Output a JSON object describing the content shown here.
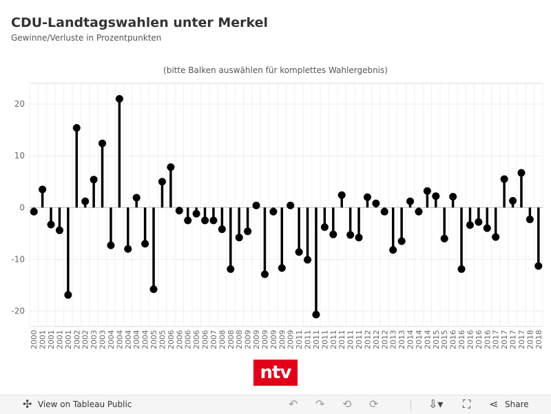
{
  "header": {
    "title": "CDU-Landtagswahlen unter Merkel",
    "subtitle": "Gewinne/Verluste in Prozentpunkten",
    "hint": "(bitte Balken auswählen für komplettes Wahlergebnis)"
  },
  "logo": {
    "text": "ntv",
    "color": "#e2001a"
  },
  "toolbar": {
    "view_label": "View on Tableau Public",
    "share_label": "Share",
    "icons": [
      "tableau-icon",
      "undo-icon",
      "redo-icon",
      "revert-icon",
      "refresh-icon",
      "download-icon",
      "fullscreen-icon",
      "share-icon"
    ]
  },
  "chart_data": {
    "type": "lollipop",
    "ylim": [
      -23,
      24
    ],
    "yticks": [
      -20,
      -10,
      0,
      10,
      20
    ],
    "grid": true,
    "color": "#000000",
    "categories": [
      "2000",
      "2001",
      "2001",
      "2001",
      "2001",
      "2002",
      "2002",
      "2003",
      "2003",
      "2004",
      "2004",
      "2004",
      "2004",
      "2004",
      "2005",
      "2005",
      "2006",
      "2006",
      "2006",
      "2006",
      "2006",
      "2007",
      "2008",
      "2008",
      "2008",
      "2009",
      "2009",
      "2009",
      "2009",
      "2009",
      "2009",
      "2011",
      "2011",
      "2011",
      "2011",
      "2011",
      "2011",
      "2011",
      "2011",
      "2012",
      "2012",
      "2012",
      "2013",
      "2013",
      "2014",
      "2014",
      "2014",
      "2015",
      "2015",
      "2016",
      "2016",
      "2016",
      "2016",
      "2016",
      "2017",
      "2017",
      "2017",
      "2017",
      "2018",
      "2018"
    ],
    "values": [
      -0.8,
      3.5,
      -3.3,
      -4.4,
      -16.9,
      15.4,
      1.2,
      5.4,
      12.4,
      -7.3,
      21.0,
      -8.0,
      1.9,
      -7.0,
      -15.8,
      5.0,
      7.8,
      -0.6,
      -2.5,
      -1.2,
      -2.5,
      -2.5,
      -4.2,
      -11.9,
      -5.8,
      -4.6,
      0.4,
      -12.9,
      -0.8,
      -11.7,
      0.4,
      -8.6,
      -10.1,
      -20.7,
      -3.8,
      -5.2,
      2.4,
      -5.3,
      -5.8,
      2.0,
      0.8,
      -0.8,
      -8.2,
      -6.5,
      1.2,
      -0.8,
      3.2,
      2.2,
      -6.0,
      2.1,
      -11.9,
      -3.4,
      -2.8,
      -4.0,
      -5.7,
      5.5,
      1.3,
      6.7,
      -2.3,
      -11.3
    ]
  }
}
